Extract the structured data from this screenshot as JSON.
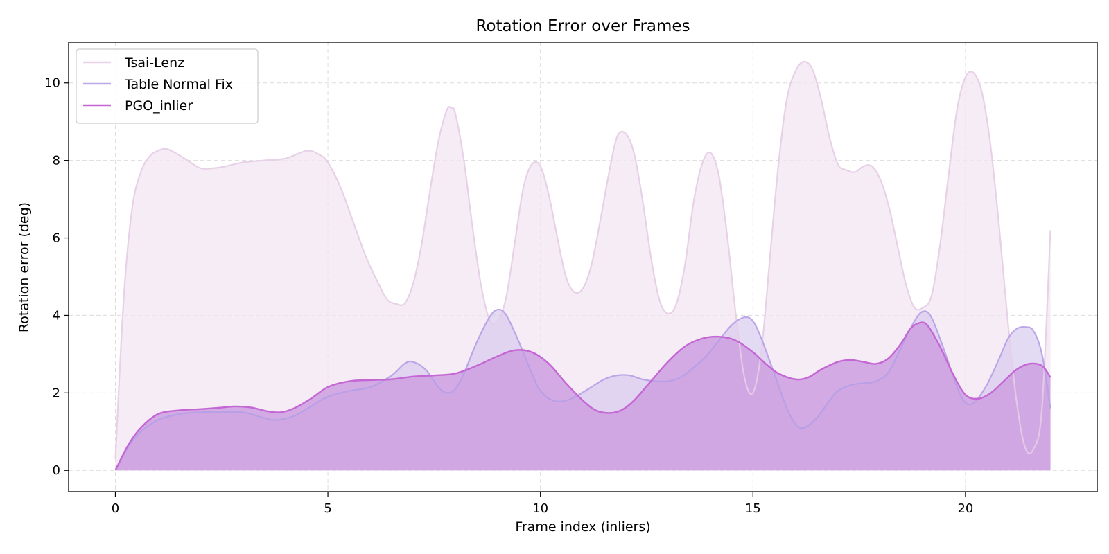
{
  "chart_data": {
    "type": "area",
    "title": "Rotation Error over Frames",
    "xlabel": "Frame index (inliers)",
    "ylabel": "Rotation error (deg)",
    "xlim": [
      -1.1,
      23.1
    ],
    "ylim": [
      -0.55,
      11.05
    ],
    "xticks": [
      0,
      5,
      10,
      15,
      20
    ],
    "yticks": [
      0,
      2,
      4,
      6,
      8,
      10
    ],
    "grid": true,
    "legend_position": "top-left",
    "series": [
      {
        "name": "Tsai-Lenz",
        "color": "#e6cde6",
        "fill_color": "#f1e6f1",
        "x": [
          0,
          0.2,
          0.4,
          0.6,
          0.8,
          1.0,
          1.2,
          1.4,
          1.7,
          2.0,
          2.3,
          2.6,
          3.0,
          3.5,
          4.0,
          4.5,
          4.8,
          5.0,
          5.3,
          5.6,
          5.9,
          6.2,
          6.4,
          6.6,
          6.8,
          7.0,
          7.2,
          7.4,
          7.6,
          7.8,
          7.9,
          8.0,
          8.2,
          8.4,
          8.6,
          8.8,
          9.0,
          9.2,
          9.4,
          9.6,
          9.8,
          10.0,
          10.2,
          10.4,
          10.6,
          10.8,
          11.0,
          11.2,
          11.4,
          11.6,
          11.8,
          12.0,
          12.2,
          12.4,
          12.6,
          12.8,
          13.0,
          13.2,
          13.4,
          13.6,
          13.8,
          14.0,
          14.2,
          14.4,
          14.6,
          14.8,
          15.0,
          15.2,
          15.4,
          15.6,
          15.8,
          16.0,
          16.2,
          16.4,
          16.6,
          16.8,
          17.0,
          17.2,
          17.4,
          17.6,
          17.8,
          18.0,
          18.2,
          18.4,
          18.6,
          18.8,
          19.0,
          19.2,
          19.4,
          19.6,
          19.8,
          20.0,
          20.2,
          20.4,
          20.6,
          20.8,
          21.0,
          21.2,
          21.4,
          21.6,
          21.8,
          22.0
        ],
        "values": [
          0.3,
          4.5,
          6.8,
          7.7,
          8.1,
          8.25,
          8.3,
          8.2,
          8.0,
          7.8,
          7.8,
          7.85,
          7.95,
          8.0,
          8.05,
          8.25,
          8.15,
          7.95,
          7.3,
          6.4,
          5.5,
          4.8,
          4.4,
          4.3,
          4.3,
          4.8,
          5.8,
          7.2,
          8.5,
          9.3,
          9.35,
          9.2,
          8.0,
          6.3,
          4.8,
          3.9,
          3.85,
          4.5,
          5.9,
          7.3,
          7.9,
          7.85,
          7.1,
          6.0,
          5.0,
          4.6,
          4.7,
          5.3,
          6.4,
          7.6,
          8.6,
          8.7,
          8.2,
          7.0,
          5.5,
          4.4,
          4.05,
          4.3,
          5.3,
          6.9,
          7.9,
          8.2,
          7.6,
          6.0,
          4.0,
          2.4,
          2.0,
          3.1,
          5.5,
          7.9,
          9.6,
          10.3,
          10.55,
          10.35,
          9.6,
          8.6,
          7.9,
          7.75,
          7.7,
          7.85,
          7.85,
          7.5,
          6.8,
          5.8,
          4.8,
          4.2,
          4.2,
          4.5,
          5.8,
          7.6,
          9.3,
          10.15,
          10.25,
          9.7,
          8.3,
          6.2,
          3.8,
          1.8,
          0.6,
          0.55,
          1.6,
          6.2
        ]
      },
      {
        "name": "Table Normal Fix",
        "color": "#b59ee5",
        "fill_color": "#d7caf0",
        "x": [
          0,
          0.3,
          0.6,
          1.0,
          1.5,
          2.0,
          2.5,
          3.0,
          3.5,
          3.8,
          4.2,
          4.6,
          5.0,
          5.5,
          6.0,
          6.5,
          6.8,
          7.0,
          7.3,
          7.6,
          7.8,
          8.0,
          8.2,
          8.5,
          8.8,
          9.0,
          9.2,
          9.5,
          9.8,
          10.0,
          10.3,
          10.6,
          10.9,
          11.2,
          11.5,
          11.8,
          12.1,
          12.4,
          12.7,
          13.0,
          13.3,
          13.6,
          13.9,
          14.2,
          14.5,
          14.8,
          15.0,
          15.2,
          15.5,
          15.8,
          16.0,
          16.2,
          16.5,
          16.8,
          17.0,
          17.3,
          17.6,
          17.9,
          18.2,
          18.5,
          18.8,
          19.0,
          19.2,
          19.5,
          19.8,
          20.0,
          20.2,
          20.5,
          20.8,
          21.0,
          21.2,
          21.4,
          21.6,
          21.8,
          22.0
        ],
        "values": [
          0,
          0.6,
          1.0,
          1.3,
          1.45,
          1.5,
          1.5,
          1.5,
          1.35,
          1.3,
          1.4,
          1.65,
          1.9,
          2.05,
          2.15,
          2.45,
          2.75,
          2.8,
          2.6,
          2.15,
          2.0,
          2.1,
          2.5,
          3.3,
          3.95,
          4.15,
          4.0,
          3.3,
          2.5,
          2.05,
          1.8,
          1.8,
          1.95,
          2.15,
          2.35,
          2.45,
          2.45,
          2.35,
          2.3,
          2.3,
          2.4,
          2.65,
          2.95,
          3.35,
          3.75,
          3.95,
          3.85,
          3.4,
          2.5,
          1.6,
          1.2,
          1.1,
          1.35,
          1.8,
          2.05,
          2.2,
          2.25,
          2.3,
          2.55,
          3.2,
          3.85,
          4.1,
          3.95,
          3.1,
          2.15,
          1.75,
          1.75,
          2.2,
          2.9,
          3.4,
          3.65,
          3.7,
          3.6,
          3.0,
          1.6
        ]
      },
      {
        "name": "PGO_inlier",
        "color": "#c466d4",
        "fill_color": "#cd9fe0",
        "x": [
          0,
          0.3,
          0.6,
          1.0,
          1.5,
          2.0,
          2.5,
          2.8,
          3.2,
          3.6,
          3.9,
          4.2,
          4.6,
          5.0,
          5.5,
          6.0,
          6.5,
          7.0,
          7.5,
          8.0,
          8.5,
          9.0,
          9.4,
          9.8,
          10.2,
          10.6,
          11.0,
          11.3,
          11.6,
          11.9,
          12.2,
          12.6,
          13.0,
          13.4,
          13.8,
          14.2,
          14.6,
          15.0,
          15.3,
          15.6,
          16.0,
          16.3,
          16.6,
          17.0,
          17.3,
          17.6,
          17.9,
          18.2,
          18.5,
          18.7,
          18.9,
          19.1,
          19.4,
          19.7,
          20.0,
          20.3,
          20.6,
          20.9,
          21.2,
          21.5,
          21.8,
          22.0
        ],
        "values": [
          0,
          0.65,
          1.1,
          1.45,
          1.55,
          1.58,
          1.62,
          1.65,
          1.62,
          1.52,
          1.5,
          1.6,
          1.85,
          2.15,
          2.3,
          2.33,
          2.35,
          2.42,
          2.45,
          2.5,
          2.7,
          2.95,
          3.1,
          3.05,
          2.75,
          2.25,
          1.8,
          1.55,
          1.48,
          1.55,
          1.8,
          2.3,
          2.8,
          3.2,
          3.4,
          3.45,
          3.35,
          3.05,
          2.75,
          2.5,
          2.35,
          2.4,
          2.6,
          2.8,
          2.85,
          2.8,
          2.75,
          2.9,
          3.3,
          3.65,
          3.8,
          3.75,
          3.2,
          2.5,
          1.95,
          1.85,
          2.0,
          2.3,
          2.6,
          2.75,
          2.7,
          2.4
        ]
      }
    ]
  }
}
